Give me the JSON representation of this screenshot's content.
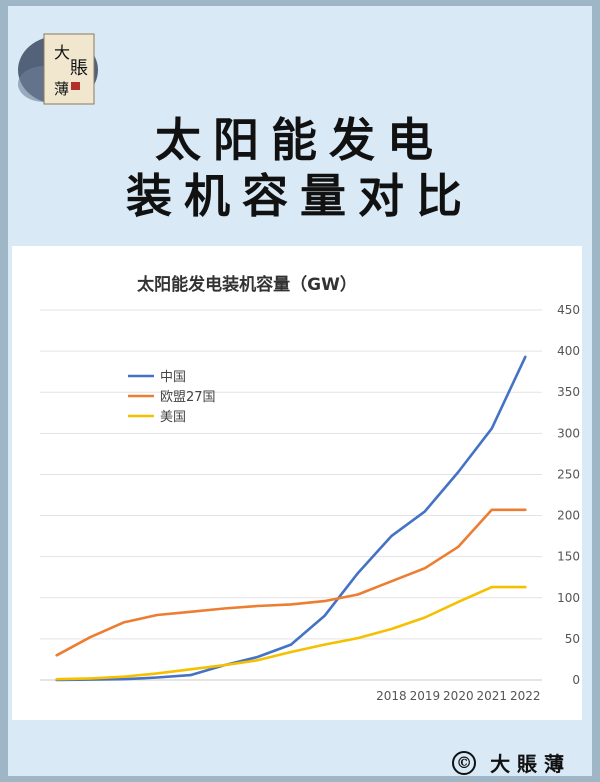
{
  "logo": {
    "text": "大賬薄",
    "icon": "seal-logo"
  },
  "headline": {
    "line1": "太阳能发电",
    "line2": "装机容量对比"
  },
  "footer": {
    "copyright_symbol": "©",
    "text": "大 賬 薄"
  },
  "chart_data": {
    "type": "line",
    "title": "太阳能发电装机容量（GW）",
    "xlabel": "",
    "ylabel": "",
    "x": [
      2008,
      2009,
      2010,
      2011,
      2012,
      2013,
      2014,
      2015,
      2016,
      2017,
      2018,
      2019,
      2020,
      2021,
      2022
    ],
    "x_tick_labels": [
      "",
      "",
      "",
      "",
      "",
      "",
      "",
      "",
      "",
      "",
      "2018",
      "2019",
      "2020",
      "2021",
      "2022"
    ],
    "yticks": [
      0,
      50,
      100,
      150,
      200,
      250,
      300,
      350,
      400,
      450
    ],
    "ylim": [
      0,
      450
    ],
    "grid": true,
    "legend_position": "top-left",
    "series": [
      {
        "name": "中国",
        "color": "#4472c4",
        "values": [
          0.1,
          0.5,
          1,
          3,
          6,
          18,
          28,
          43,
          78,
          130,
          175,
          205,
          253,
          306,
          393
        ]
      },
      {
        "name": "欧盟27国",
        "color": "#ed7d31",
        "values": [
          30,
          52,
          70,
          79,
          83,
          87,
          90,
          92,
          96,
          104,
          120,
          136,
          162,
          207,
          207
        ]
      },
      {
        "name": "美国",
        "color": "#f5c000",
        "values": [
          1,
          2,
          4,
          8,
          13,
          18,
          24,
          34,
          43,
          51,
          62,
          76,
          95,
          113,
          113
        ]
      }
    ]
  }
}
